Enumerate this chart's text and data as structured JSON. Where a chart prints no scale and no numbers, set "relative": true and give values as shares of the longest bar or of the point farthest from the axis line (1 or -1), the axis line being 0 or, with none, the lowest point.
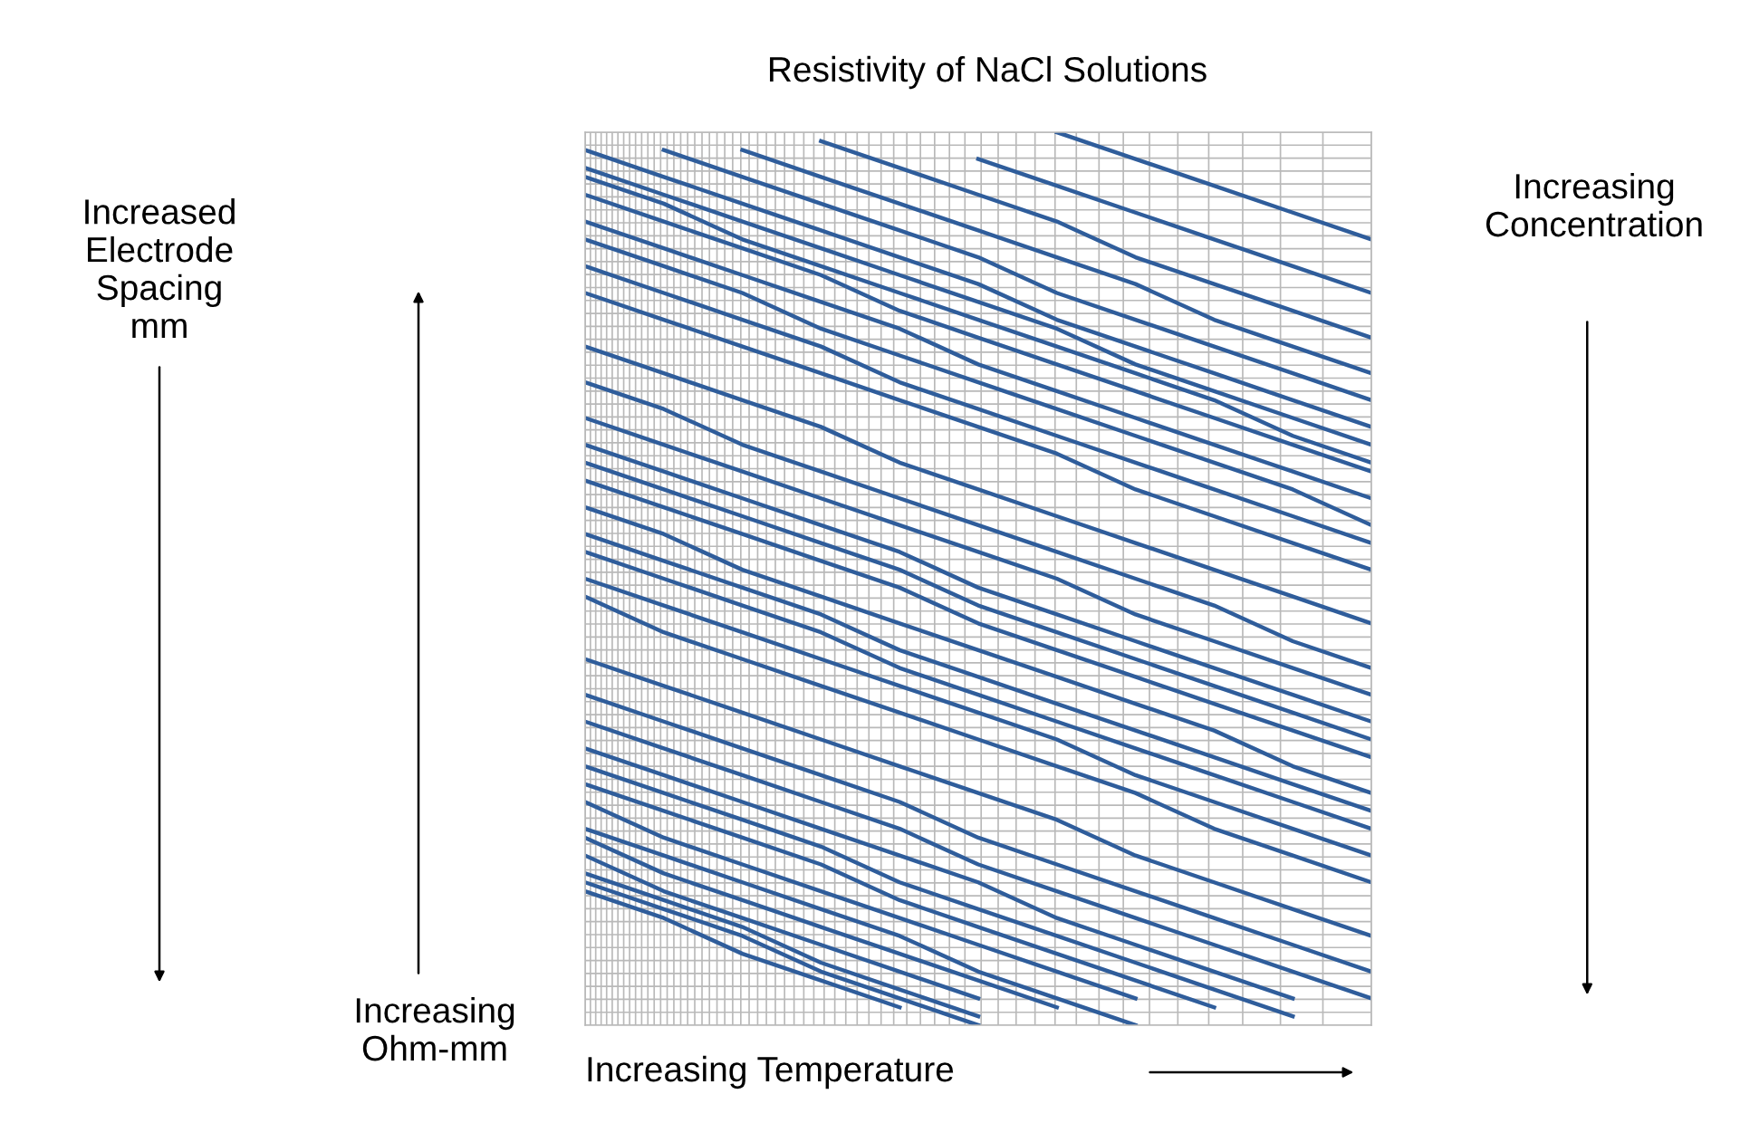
{
  "chart_data": {
    "type": "line",
    "title": "Resistivity of NaCl Solutions",
    "xlabel": "Increasing Temperature",
    "ylabel": "Increasing Ohm-mm",
    "annotations": [
      "Increased Electrode Spacing mm",
      "Increasing Concentration"
    ],
    "relative": true,
    "grid": true,
    "legend": false,
    "marker": "none",
    "line_style": "solid",
    "categories": [
      null,
      null,
      null,
      null,
      null,
      null,
      null,
      null,
      null,
      null,
      null
    ],
    "series": [
      {
        "color": "#2f5d9b",
        "values": [
          null,
          null,
          null,
          null,
          null,
          null,
          1.0,
          0.97,
          0.94,
          0.91,
          0.88
        ]
      },
      {
        "color": "#2f5d9b",
        "values": [
          null,
          null,
          null,
          null,
          null,
          0.97,
          0.94,
          0.91,
          0.88,
          0.85,
          0.82
        ]
      },
      {
        "color": "#2f5d9b",
        "values": [
          null,
          null,
          null,
          0.99,
          0.96,
          0.93,
          0.9,
          0.86,
          0.83,
          0.8,
          0.77
        ]
      },
      {
        "color": "#2f5d9b",
        "values": [
          null,
          null,
          0.98,
          0.95,
          0.92,
          0.89,
          0.86,
          0.83,
          0.79,
          0.76,
          0.73
        ]
      },
      {
        "color": "#2f5d9b",
        "values": [
          null,
          0.98,
          0.95,
          0.92,
          0.89,
          0.86,
          0.82,
          0.79,
          0.76,
          0.73,
          0.7
        ]
      },
      {
        "color": "#2f5d9b",
        "values": [
          0.98,
          0.95,
          0.92,
          0.89,
          0.86,
          0.83,
          0.79,
          0.76,
          0.73,
          0.7,
          0.67
        ]
      },
      {
        "color": "#2f5d9b",
        "values": [
          0.96,
          0.93,
          0.9,
          0.87,
          0.84,
          0.81,
          0.78,
          0.74,
          0.71,
          0.68,
          0.65
        ]
      },
      {
        "color": "#2f5d9b",
        "values": [
          0.95,
          0.92,
          0.88,
          0.85,
          0.82,
          0.79,
          0.76,
          0.73,
          0.7,
          0.66,
          0.63
        ]
      },
      {
        "color": "#2f5d9b",
        "values": [
          0.93,
          0.9,
          0.87,
          0.84,
          0.8,
          0.77,
          0.74,
          0.71,
          0.68,
          0.65,
          0.62
        ]
      },
      {
        "color": "#2f5d9b",
        "values": [
          0.9,
          0.87,
          0.84,
          0.81,
          0.78,
          0.74,
          0.71,
          0.68,
          0.65,
          0.62,
          0.59
        ]
      },
      {
        "color": "#2f5d9b",
        "values": [
          0.88,
          0.85,
          0.82,
          0.78,
          0.75,
          0.72,
          0.69,
          0.66,
          0.63,
          0.6,
          0.56
        ]
      },
      {
        "color": "#2f5d9b",
        "values": [
          0.85,
          0.82,
          0.79,
          0.76,
          0.72,
          0.69,
          0.66,
          0.63,
          0.6,
          0.57,
          0.54
        ]
      },
      {
        "color": "#2f5d9b",
        "values": [
          0.82,
          0.79,
          0.76,
          0.73,
          0.7,
          0.67,
          0.64,
          0.6,
          0.57,
          0.54,
          0.51
        ]
      },
      {
        "color": "#2f5d9b",
        "values": [
          0.76,
          0.73,
          0.7,
          0.67,
          0.63,
          0.6,
          0.57,
          0.54,
          0.51,
          0.48,
          0.45
        ]
      },
      {
        "color": "#2f5d9b",
        "values": [
          0.72,
          0.69,
          0.65,
          0.62,
          0.59,
          0.56,
          0.53,
          0.5,
          0.47,
          0.43,
          0.4
        ]
      },
      {
        "color": "#2f5d9b",
        "values": [
          0.68,
          0.65,
          0.62,
          0.59,
          0.56,
          0.53,
          0.5,
          0.46,
          0.43,
          0.4,
          0.37
        ]
      },
      {
        "color": "#2f5d9b",
        "values": [
          0.65,
          0.62,
          0.59,
          0.56,
          0.53,
          0.49,
          0.46,
          0.43,
          0.4,
          0.37,
          0.34
        ]
      },
      {
        "color": "#2f5d9b",
        "values": [
          0.63,
          0.6,
          0.57,
          0.54,
          0.51,
          0.47,
          0.44,
          0.41,
          0.38,
          0.35,
          0.32
        ]
      },
      {
        "color": "#2f5d9b",
        "values": [
          0.61,
          0.58,
          0.55,
          0.52,
          0.49,
          0.45,
          0.42,
          0.39,
          0.36,
          0.33,
          0.3
        ]
      },
      {
        "color": "#2f5d9b",
        "values": [
          0.58,
          0.55,
          0.51,
          0.48,
          0.45,
          0.42,
          0.39,
          0.36,
          0.33,
          0.29,
          0.26
        ]
      },
      {
        "color": "#2f5d9b",
        "values": [
          0.55,
          0.52,
          0.49,
          0.46,
          0.42,
          0.39,
          0.36,
          0.33,
          0.3,
          0.27,
          0.24
        ]
      },
      {
        "color": "#2f5d9b",
        "values": [
          0.53,
          0.5,
          0.47,
          0.44,
          0.4,
          0.37,
          0.34,
          0.31,
          0.28,
          0.25,
          0.22
        ]
      },
      {
        "color": "#2f5d9b",
        "values": [
          0.5,
          0.47,
          0.44,
          0.41,
          0.38,
          0.35,
          0.32,
          0.28,
          0.25,
          0.22,
          0.19
        ]
      },
      {
        "color": "#2f5d9b",
        "values": [
          0.48,
          0.44,
          0.41,
          0.38,
          0.35,
          0.32,
          0.29,
          0.26,
          0.22,
          0.19,
          0.16
        ]
      },
      {
        "color": "#2f5d9b",
        "values": [
          0.41,
          0.38,
          0.35,
          0.32,
          0.29,
          0.26,
          0.23,
          0.19,
          0.16,
          0.13,
          0.1
        ]
      },
      {
        "color": "#2f5d9b",
        "values": [
          0.37,
          0.34,
          0.31,
          0.28,
          0.25,
          0.21,
          0.18,
          0.15,
          0.12,
          0.09,
          0.06
        ]
      },
      {
        "color": "#2f5d9b",
        "values": [
          0.34,
          0.31,
          0.28,
          0.25,
          0.22,
          0.18,
          0.15,
          0.12,
          0.09,
          0.06,
          0.03
        ]
      },
      {
        "color": "#2f5d9b",
        "values": [
          0.31,
          0.28,
          0.25,
          0.22,
          0.19,
          0.16,
          0.12,
          0.09,
          0.06,
          0.03,
          null
        ]
      },
      {
        "color": "#2f5d9b",
        "values": [
          0.29,
          0.26,
          0.23,
          0.2,
          0.16,
          0.13,
          0.1,
          0.07,
          0.04,
          0.01,
          null
        ]
      },
      {
        "color": "#2f5d9b",
        "values": [
          0.27,
          0.24,
          0.21,
          0.18,
          0.14,
          0.11,
          0.08,
          0.05,
          0.02,
          null,
          null
        ]
      },
      {
        "color": "#2f5d9b",
        "values": [
          0.25,
          0.21,
          0.18,
          0.15,
          0.12,
          0.09,
          0.06,
          0.03,
          null,
          null,
          null
        ]
      },
      {
        "color": "#2f5d9b",
        "values": [
          0.22,
          0.19,
          0.16,
          0.13,
          0.1,
          0.06,
          0.03,
          0.0,
          null,
          null,
          null
        ]
      },
      {
        "color": "#2f5d9b",
        "values": [
          0.21,
          0.17,
          0.14,
          0.11,
          0.08,
          0.05,
          0.02,
          null,
          null,
          null,
          null
        ]
      },
      {
        "color": "#2f5d9b",
        "values": [
          0.19,
          0.15,
          0.12,
          0.09,
          0.06,
          0.03,
          null,
          null,
          null,
          null,
          null
        ]
      },
      {
        "color": "#2f5d9b",
        "values": [
          0.17,
          0.14,
          0.11,
          0.07,
          0.04,
          0.01,
          null,
          null,
          null,
          null,
          null
        ]
      },
      {
        "color": "#2f5d9b",
        "values": [
          0.16,
          0.13,
          0.1,
          0.06,
          0.03,
          0.0,
          null,
          null,
          null,
          null,
          null
        ]
      },
      {
        "color": "#2f5d9b",
        "values": [
          0.15,
          0.12,
          0.08,
          0.05,
          0.02,
          null,
          null,
          null,
          null,
          null,
          null
        ]
      }
    ]
  }
}
